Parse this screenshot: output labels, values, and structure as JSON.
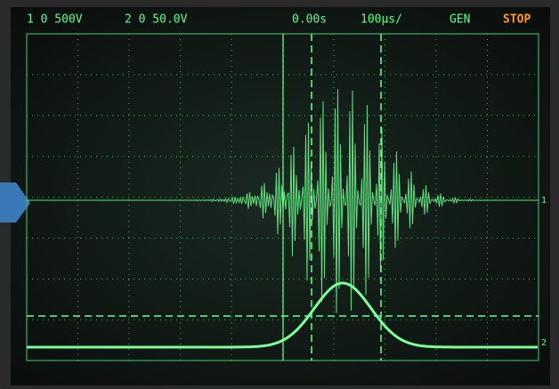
{
  "status_bar": {
    "channel_1": "1 0 500V",
    "channel_2": "2 0 50.0V",
    "delay": "0.00s",
    "timebase": "100µs/",
    "mode": "GEN",
    "run_state": "STOP"
  },
  "markers": {
    "ch1_right": "1",
    "ch2_right": "2"
  }
}
